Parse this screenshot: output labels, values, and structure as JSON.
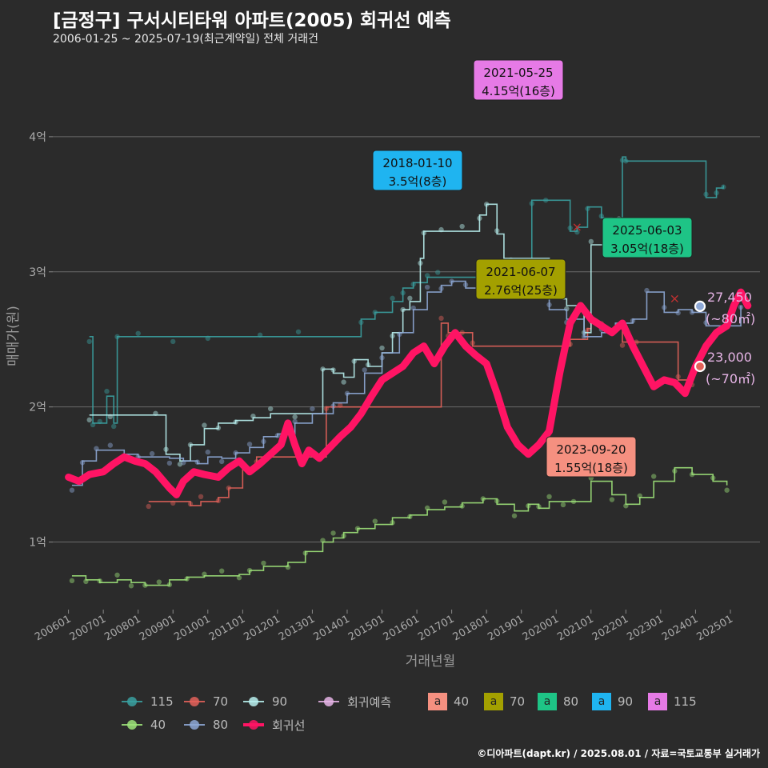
{
  "title": "[금정구] 구서시티타워 아파트(2005) 회귀선 예측",
  "subtitle": "2006-01-25 ~ 2025-07-19(최근계약일) 전체 거래건",
  "credit": "©디아파트(dapt.kr) / 2025.08.01 / 자료=국토교통부 실거래가",
  "colors": {
    "background": "#2b2b2b",
    "s115": "#3aa0a0",
    "s70": "#e3625a",
    "s90": "#b8f0ee",
    "s40": "#9ee37a",
    "s80": "#8ea8d6",
    "regression": "#ff1464",
    "prediction": "#e6b4e6"
  },
  "chart_data": {
    "type": "line",
    "xlabel": "거래년월",
    "ylabel": "매매가(원)",
    "x_ticks": [
      "200601",
      "200701",
      "200801",
      "200901",
      "201001",
      "201101",
      "201201",
      "201301",
      "201401",
      "201501",
      "201601",
      "201701",
      "201801",
      "201901",
      "202001",
      "202101",
      "202201",
      "202301",
      "202401",
      "202501"
    ],
    "y_ticks": [
      {
        "value": 1,
        "label": "1억"
      },
      {
        "value": 2,
        "label": "2억"
      },
      {
        "value": 3,
        "label": "3억"
      },
      {
        "value": 4,
        "label": "4억"
      }
    ],
    "ylim": [
      0.5,
      4.55
    ],
    "grid": true,
    "series": [
      {
        "name": "115",
        "color_key": "s115",
        "points": [
          [
            2006.6,
            2.52
          ],
          [
            2006.7,
            1.88
          ],
          [
            2006.9,
            1.88
          ],
          [
            2007.1,
            2.08
          ],
          [
            2007.3,
            1.88
          ],
          [
            2007.4,
            2.52
          ],
          [
            2008.0,
            2.52
          ],
          [
            2009.0,
            2.52
          ],
          [
            2010.0,
            2.52
          ],
          [
            2011.5,
            2.52
          ],
          [
            2012.6,
            2.52
          ],
          [
            2014.4,
            2.65
          ],
          [
            2014.8,
            2.7
          ],
          [
            2015.3,
            2.78
          ],
          [
            2015.6,
            2.88
          ],
          [
            2015.9,
            2.92
          ],
          [
            2016.3,
            2.96
          ],
          [
            2016.6,
            2.96
          ],
          [
            2019.3,
            3.53
          ],
          [
            2019.7,
            3.53
          ],
          [
            2020.4,
            3.3
          ],
          [
            2020.6,
            3.33
          ],
          [
            2020.9,
            3.48
          ],
          [
            2021.3,
            3.4
          ],
          [
            2021.6,
            3.2
          ],
          [
            2021.9,
            3.85
          ],
          [
            2022.0,
            3.82
          ],
          [
            2024.3,
            3.55
          ],
          [
            2024.6,
            3.62
          ],
          [
            2024.8,
            3.64
          ]
        ]
      },
      {
        "name": "70",
        "color_key": "s70",
        "points": [
          [
            2008.3,
            1.3
          ],
          [
            2009.0,
            1.3
          ],
          [
            2009.5,
            1.27
          ],
          [
            2009.8,
            1.3
          ],
          [
            2010.3,
            1.33
          ],
          [
            2010.6,
            1.4
          ],
          [
            2011.0,
            1.55
          ],
          [
            2011.4,
            1.63
          ],
          [
            2013.4,
            2.0
          ],
          [
            2013.8,
            2.0
          ],
          [
            2016.7,
            2.62
          ],
          [
            2016.9,
            2.55
          ],
          [
            2017.3,
            2.55
          ],
          [
            2017.6,
            2.45
          ],
          [
            2020.4,
            2.5
          ],
          [
            2020.9,
            2.58
          ],
          [
            2021.0,
            2.62
          ],
          [
            2021.3,
            2.58
          ],
          [
            2021.9,
            2.48
          ],
          [
            2022.3,
            2.48
          ],
          [
            2023.5,
            2.2
          ],
          [
            2023.9,
            2.2
          ]
        ]
      },
      {
        "name": "90",
        "color_key": "s90",
        "points": [
          [
            2006.6,
            1.94
          ],
          [
            2007.2,
            1.94
          ],
          [
            2008.5,
            1.94
          ],
          [
            2008.8,
            1.65
          ],
          [
            2009.2,
            1.6
          ],
          [
            2009.5,
            1.72
          ],
          [
            2009.9,
            1.84
          ],
          [
            2010.3,
            1.88
          ],
          [
            2010.8,
            1.9
          ],
          [
            2011.3,
            1.92
          ],
          [
            2011.8,
            1.95
          ],
          [
            2012.5,
            1.95
          ],
          [
            2013.3,
            2.28
          ],
          [
            2013.6,
            2.25
          ],
          [
            2013.9,
            2.22
          ],
          [
            2014.2,
            2.35
          ],
          [
            2014.6,
            2.3
          ],
          [
            2015.0,
            2.4
          ],
          [
            2015.3,
            2.55
          ],
          [
            2015.6,
            2.72
          ],
          [
            2015.8,
            2.78
          ],
          [
            2016.1,
            3.1
          ],
          [
            2016.2,
            3.3
          ],
          [
            2016.7,
            3.3
          ],
          [
            2017.3,
            3.3
          ],
          [
            2017.8,
            3.42
          ],
          [
            2018.0,
            3.5
          ],
          [
            2018.3,
            3.28
          ],
          [
            2018.5,
            3.1
          ],
          [
            2018.7,
            3.1
          ],
          [
            2019.8,
            2.95
          ],
          [
            2020.0,
            2.8
          ],
          [
            2020.3,
            2.75
          ],
          [
            2020.8,
            2.55
          ],
          [
            2021.0,
            3.2
          ],
          [
            2021.5,
            3.2
          ],
          [
            2021.7,
            3.3
          ],
          [
            2021.8,
            3.38
          ],
          [
            2022.2,
            3.3
          ],
          [
            2022.5,
            3.3
          ]
        ]
      },
      {
        "name": "40",
        "color_key": "s40",
        "points": [
          [
            2006.1,
            0.75
          ],
          [
            2006.5,
            0.72
          ],
          [
            2006.9,
            0.7
          ],
          [
            2007.4,
            0.72
          ],
          [
            2007.8,
            0.7
          ],
          [
            2008.2,
            0.68
          ],
          [
            2008.6,
            0.68
          ],
          [
            2008.9,
            0.72
          ],
          [
            2009.4,
            0.74
          ],
          [
            2009.9,
            0.75
          ],
          [
            2010.4,
            0.75
          ],
          [
            2010.9,
            0.76
          ],
          [
            2011.2,
            0.79
          ],
          [
            2011.6,
            0.82
          ],
          [
            2012.3,
            0.85
          ],
          [
            2012.8,
            0.93
          ],
          [
            2013.3,
            1.0
          ],
          [
            2013.6,
            1.03
          ],
          [
            2013.9,
            1.07
          ],
          [
            2014.3,
            1.1
          ],
          [
            2014.8,
            1.13
          ],
          [
            2015.3,
            1.18
          ],
          [
            2015.8,
            1.2
          ],
          [
            2016.3,
            1.24
          ],
          [
            2016.8,
            1.26
          ],
          [
            2017.3,
            1.29
          ],
          [
            2017.9,
            1.32
          ],
          [
            2018.3,
            1.28
          ],
          [
            2018.8,
            1.23
          ],
          [
            2019.2,
            1.28
          ],
          [
            2019.5,
            1.25
          ],
          [
            2019.8,
            1.3
          ],
          [
            2020.2,
            1.3
          ],
          [
            2020.5,
            1.3
          ],
          [
            2021.0,
            1.45
          ],
          [
            2021.6,
            1.35
          ],
          [
            2022.0,
            1.28
          ],
          [
            2022.4,
            1.33
          ],
          [
            2022.8,
            1.45
          ],
          [
            2023.4,
            1.55
          ],
          [
            2023.9,
            1.5
          ],
          [
            2024.5,
            1.45
          ],
          [
            2024.9,
            1.42
          ]
        ]
      },
      {
        "name": "80",
        "color_key": "s80",
        "points": [
          [
            2006.1,
            1.42
          ],
          [
            2006.4,
            1.6
          ],
          [
            2006.8,
            1.68
          ],
          [
            2007.2,
            1.68
          ],
          [
            2007.6,
            1.65
          ],
          [
            2008.0,
            1.63
          ],
          [
            2008.4,
            1.63
          ],
          [
            2008.9,
            1.62
          ],
          [
            2009.3,
            1.6
          ],
          [
            2009.7,
            1.58
          ],
          [
            2010.0,
            1.63
          ],
          [
            2010.4,
            1.62
          ],
          [
            2010.8,
            1.66
          ],
          [
            2011.2,
            1.7
          ],
          [
            2011.6,
            1.78
          ],
          [
            2012.0,
            1.8
          ],
          [
            2012.5,
            1.88
          ],
          [
            2013.0,
            1.95
          ],
          [
            2013.6,
            2.03
          ],
          [
            2014.0,
            2.1
          ],
          [
            2014.5,
            2.25
          ],
          [
            2015.0,
            2.4
          ],
          [
            2015.5,
            2.55
          ],
          [
            2015.9,
            2.72
          ],
          [
            2016.3,
            2.85
          ],
          [
            2016.7,
            2.9
          ],
          [
            2017.0,
            2.93
          ],
          [
            2017.4,
            2.88
          ],
          [
            2017.8,
            2.92
          ],
          [
            2018.2,
            2.87
          ],
          [
            2019.3,
            2.82
          ],
          [
            2019.8,
            2.72
          ],
          [
            2020.3,
            2.65
          ],
          [
            2020.8,
            2.52
          ],
          [
            2021.3,
            2.55
          ],
          [
            2021.7,
            2.62
          ],
          [
            2022.2,
            2.65
          ],
          [
            2022.6,
            2.85
          ],
          [
            2023.1,
            2.7
          ],
          [
            2023.5,
            2.72
          ],
          [
            2023.9,
            2.7
          ],
          [
            2024.3,
            2.6
          ],
          [
            2024.7,
            2.6
          ],
          [
            2025.3,
            2.75
          ]
        ]
      },
      {
        "name": "회귀선",
        "color_key": "regression",
        "points": [
          [
            2006.0,
            1.48
          ],
          [
            2006.3,
            1.45
          ],
          [
            2006.6,
            1.5
          ],
          [
            2007.0,
            1.52
          ],
          [
            2007.3,
            1.58
          ],
          [
            2007.6,
            1.63
          ],
          [
            2007.9,
            1.6
          ],
          [
            2008.2,
            1.58
          ],
          [
            2008.5,
            1.52
          ],
          [
            2008.9,
            1.4
          ],
          [
            2009.1,
            1.35
          ],
          [
            2009.3,
            1.45
          ],
          [
            2009.6,
            1.52
          ],
          [
            2009.9,
            1.5
          ],
          [
            2010.3,
            1.48
          ],
          [
            2010.6,
            1.55
          ],
          [
            2010.9,
            1.6
          ],
          [
            2011.2,
            1.52
          ],
          [
            2011.5,
            1.58
          ],
          [
            2011.8,
            1.65
          ],
          [
            2012.1,
            1.72
          ],
          [
            2012.3,
            1.88
          ],
          [
            2012.5,
            1.72
          ],
          [
            2012.7,
            1.58
          ],
          [
            2012.9,
            1.68
          ],
          [
            2013.2,
            1.62
          ],
          [
            2013.5,
            1.7
          ],
          [
            2013.8,
            1.78
          ],
          [
            2014.1,
            1.85
          ],
          [
            2014.4,
            1.95
          ],
          [
            2014.7,
            2.08
          ],
          [
            2015.0,
            2.2
          ],
          [
            2015.3,
            2.25
          ],
          [
            2015.6,
            2.3
          ],
          [
            2015.9,
            2.4
          ],
          [
            2016.2,
            2.45
          ],
          [
            2016.5,
            2.32
          ],
          [
            2016.8,
            2.45
          ],
          [
            2017.1,
            2.55
          ],
          [
            2017.4,
            2.45
          ],
          [
            2017.7,
            2.38
          ],
          [
            2018.0,
            2.32
          ],
          [
            2018.3,
            2.1
          ],
          [
            2018.6,
            1.85
          ],
          [
            2018.9,
            1.72
          ],
          [
            2019.2,
            1.65
          ],
          [
            2019.5,
            1.72
          ],
          [
            2019.8,
            1.82
          ],
          [
            2020.1,
            2.25
          ],
          [
            2020.4,
            2.62
          ],
          [
            2020.7,
            2.75
          ],
          [
            2021.0,
            2.65
          ],
          [
            2021.3,
            2.6
          ],
          [
            2021.6,
            2.55
          ],
          [
            2021.9,
            2.62
          ],
          [
            2022.2,
            2.45
          ],
          [
            2022.5,
            2.3
          ],
          [
            2022.8,
            2.15
          ],
          [
            2023.1,
            2.2
          ],
          [
            2023.4,
            2.18
          ],
          [
            2023.7,
            2.1
          ],
          [
            2024.0,
            2.3
          ],
          [
            2024.3,
            2.45
          ],
          [
            2024.6,
            2.55
          ],
          [
            2024.9,
            2.6
          ],
          [
            2025.1,
            2.75
          ],
          [
            2025.3,
            2.85
          ],
          [
            2025.5,
            2.75
          ]
        ]
      }
    ],
    "scatter_note": "individual transaction dots shown behind each series",
    "annotations": [
      {
        "date": "2021-05-25",
        "value": "4.15억(16층)",
        "x": 2021.4,
        "y": 4.15,
        "color": "#e67ae6"
      },
      {
        "date": "2018-01-10",
        "value": "3.5억(8층)",
        "x": 2018.0,
        "y": 3.5,
        "color": "#1fb4f0"
      },
      {
        "date": "2025-06-03",
        "value": "3.05억(18층)",
        "x": 2025.4,
        "y": 3.05,
        "color": "#1ec486"
      },
      {
        "date": "2021-06-07",
        "value": "2.76억(25층)",
        "x": 2021.4,
        "y": 2.76,
        "color": "#a3a000"
      },
      {
        "date": "2023-09-20",
        "value": "1.55억(18층)",
        "x": 2023.7,
        "y": 1.55,
        "color": "#f59080"
      }
    ],
    "predictions": [
      {
        "value": "27,450",
        "area": "(~80㎡)",
        "y": 2.745
      },
      {
        "value": "23,000",
        "area": "(~70㎡)",
        "y": 2.3
      }
    ]
  },
  "legend": {
    "row1": [
      {
        "label": "115",
        "color_key": "s115"
      },
      {
        "label": "70",
        "color_key": "s70"
      },
      {
        "label": "90",
        "color_key": "s90"
      },
      {
        "label": "회귀예측",
        "color_key": "prediction"
      }
    ],
    "row2": [
      {
        "label": "40",
        "color_key": "s40"
      },
      {
        "label": "80",
        "color_key": "s80"
      },
      {
        "label": "회귀선",
        "color_key": "regression"
      }
    ],
    "boxes": [
      {
        "label": "40",
        "color": "#f59080"
      },
      {
        "label": "70",
        "color": "#a3a000"
      },
      {
        "label": "80",
        "color": "#1ec486"
      },
      {
        "label": "90",
        "color": "#1fb4f0"
      },
      {
        "label": "115",
        "color": "#e67ae6"
      }
    ],
    "box_letter": "a"
  }
}
